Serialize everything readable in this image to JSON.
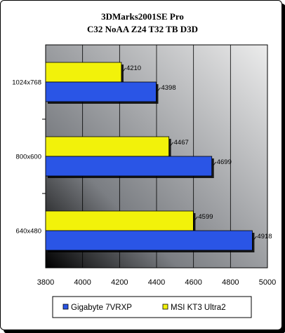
{
  "chart_data": {
    "type": "bar",
    "orientation": "horizontal",
    "title": "3DMarks2001SE Pro",
    "subtitle": "C32 NoAA Z24 T32 TB D3D",
    "categories": [
      "1024x768",
      "800x600",
      "640x480"
    ],
    "series": [
      {
        "name": "Gigabyte 7VRXP",
        "color": "#2a55e6",
        "values": [
          4398,
          4699,
          4918
        ]
      },
      {
        "name": "MSI KT3 Ultra2",
        "color": "#f2f20a",
        "values": [
          4210,
          4467,
          4599
        ]
      }
    ],
    "xlim": [
      3800,
      5000
    ],
    "x_ticks": [
      3800,
      4000,
      4200,
      4400,
      4600,
      4800,
      5000
    ],
    "grid": true,
    "legend_position": "bottom",
    "plot_background": "#9fa2a8"
  }
}
